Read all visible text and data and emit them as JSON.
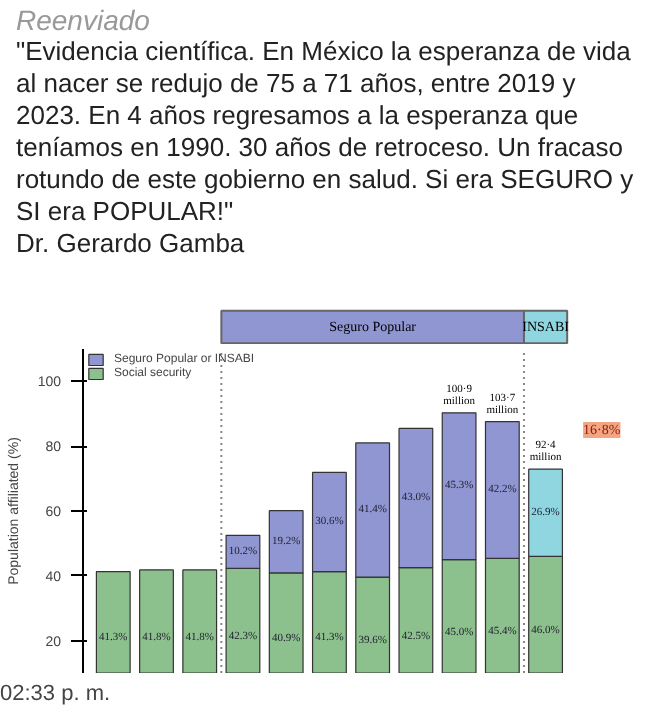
{
  "chart_data": {
    "type": "bar",
    "stacked": true,
    "title": "\"Evidencia científica. En México la esperanza de vida al nacer se redujo de 75 a 71 años, entre 2019 y 2023. En 4 años regresamos a la esperanza que teníamos en 1990. 30 años de retroceso. Un fracaso rotundo de este gobierno en salud. Si era SEGURO y SI era POPULAR!\"",
    "subtitle": "Dr. Gerardo Gamba",
    "annotations": [
      "Reenviado",
      "Seguro Popular",
      "INSABI",
      "16·8%",
      "02:33 p. m."
    ],
    "ylabel": "Population affiliated (%)",
    "categories": [
      null,
      null,
      null,
      null,
      null,
      null,
      null,
      null,
      null,
      null,
      null
    ],
    "series": [
      {
        "name": "Social security",
        "color": "#8cc08c",
        "values": [
          41.3,
          41.8,
          41.8,
          42.3,
          40.9,
          41.3,
          39.6,
          42.5,
          45.0,
          45.4,
          46.0
        ],
        "value_labels": [
          "41.3%",
          "41.8%",
          "41.8%",
          "42.3%",
          "40.9%",
          "41.3%",
          "39.6%",
          "42.5%",
          "45.0%",
          "45.4%",
          "46.0%"
        ]
      },
      {
        "name": "Seguro Popular or INSABI",
        "color": "#8f96d2",
        "colors": [
          null,
          null,
          null,
          null,
          null,
          null,
          null,
          null,
          null,
          null,
          "#8fd6e0"
        ],
        "values": [
          null,
          null,
          null,
          10.2,
          19.2,
          30.6,
          41.4,
          43.0,
          45.3,
          42.2,
          26.9
        ],
        "value_labels": [
          null,
          null,
          null,
          "10.2%",
          "19.2%",
          "30.6%",
          "41.4%",
          "43.0%",
          "45.3%",
          "42.2%",
          "26.9%"
        ]
      }
    ],
    "totals": [
      null,
      null,
      null,
      null,
      null,
      null,
      null,
      null,
      "100·9 million",
      "103·7 million",
      "92·4 million"
    ],
    "ylim": [
      10,
      110
    ],
    "yticks": [
      20,
      40,
      60,
      80,
      100
    ],
    "tick_labels": "y",
    "legend": "top left",
    "grid": false
  }
}
